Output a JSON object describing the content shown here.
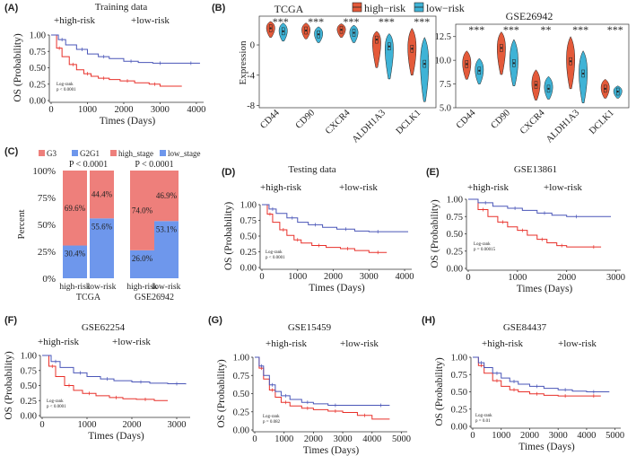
{
  "colors": {
    "high": "#e8302a",
    "low": "#4a56b8",
    "g3": "#ee7f7b",
    "g2g1": "#6e97ec",
    "violin_high": "#e45a3a",
    "violin_low": "#3fb3d6"
  },
  "panels": {
    "A": {
      "label": "(A)",
      "title": "Training data",
      "legend_high": "high-risk",
      "legend_low": "low-risk",
      "logrank": "Log-rank",
      "pvalue": "p < 0.0001"
    },
    "B": {
      "label": "(B)",
      "legend_high": "high−risk",
      "legend_low": "low−risk",
      "ylabel": "Expression",
      "left_title": "TCGA",
      "right_title": "GSE26942"
    },
    "C": {
      "label": "(C)",
      "legend": [
        "G3",
        "G2G1",
        "high_stage",
        "low_stage"
      ],
      "ylabel": "Percent"
    },
    "D": {
      "label": "(D)",
      "title": "Testing data",
      "legend_high": "high-risk",
      "legend_low": "low-risk",
      "logrank": "Log-rank",
      "pvalue": "p < 0.0001"
    },
    "E": {
      "label": "(E)",
      "title": "GSE13861",
      "legend_high": "high-risk",
      "legend_low": "low-risk",
      "logrank": "Log-rank",
      "pvalue": "p = 0.00015"
    },
    "F": {
      "label": "(F)",
      "title": "GSE62254",
      "legend_high": "high-risk",
      "legend_low": "low-risk",
      "logrank": "Log-rank",
      "pvalue": "p < 0.0001"
    },
    "G": {
      "label": "(G)",
      "title": "GSE15459",
      "legend_high": "high-risk",
      "legend_low": "low-risk",
      "logrank": "Log-rank",
      "pvalue": "p = 0.082"
    },
    "H": {
      "label": "(H)",
      "title": "GSE84437",
      "legend_high": "high-risk",
      "legend_low": "low-risk",
      "logrank": "Log-rank",
      "pvalue": "p = 0.01"
    }
  },
  "chart_data": [
    {
      "panel": "A",
      "type": "line",
      "subtype": "kaplan-meier",
      "title": "Training data",
      "xlabel": "Times (Days)",
      "ylabel": "OS (Probability)",
      "xlim": [
        0,
        4200
      ],
      "ylim": [
        0,
        1
      ],
      "xticks": [
        0,
        1000,
        2000,
        3000,
        4000
      ],
      "yticks": [
        0,
        0.25,
        0.5,
        0.75,
        1.0
      ],
      "ytick_labels": [
        "0.00",
        "0.25",
        "0.50",
        "0.75",
        "1.00"
      ],
      "annotation": "Log-rank\np < 0.0001",
      "series": [
        {
          "name": "high-risk",
          "x": [
            0,
            150,
            300,
            500,
            700,
            900,
            1100,
            1300,
            1600,
            1900,
            2300,
            2700,
            3000,
            3600
          ],
          "y": [
            1.0,
            0.8,
            0.67,
            0.55,
            0.47,
            0.41,
            0.37,
            0.34,
            0.32,
            0.3,
            0.27,
            0.25,
            0.22,
            0.22
          ]
        },
        {
          "name": "low-risk",
          "x": [
            0,
            200,
            400,
            700,
            1000,
            1300,
            1600,
            2000,
            2400,
            2800,
            3200,
            3600,
            4100
          ],
          "y": [
            1.0,
            0.93,
            0.85,
            0.78,
            0.71,
            0.67,
            0.64,
            0.6,
            0.58,
            0.57,
            0.57,
            0.57,
            0.57
          ]
        }
      ]
    },
    {
      "panel": "B-left",
      "type": "violin",
      "title": "TCGA",
      "ylabel": "Expression",
      "ylim": [
        -8.3,
        3.8
      ],
      "yticks": [
        -8,
        -4,
        0
      ],
      "ytick_labels": [
        "-8",
        "-4",
        "0"
      ],
      "categories": [
        "CD44",
        "CD90",
        "CXCR4",
        "ALDH1A3",
        "DCLK1"
      ],
      "significance": [
        "***",
        "***",
        "***",
        "***",
        "***"
      ],
      "series": [
        {
          "name": "high−risk",
          "median": [
            2.2,
            1.9,
            2.0,
            0.7,
            -0.5
          ],
          "min": [
            1.0,
            0.8,
            1.0,
            -3.0,
            -4.0
          ],
          "max": [
            3.1,
            2.9,
            2.8,
            1.8,
            2.2
          ]
        },
        {
          "name": "low−risk",
          "median": [
            1.8,
            1.4,
            1.6,
            -0.2,
            -2.5
          ],
          "min": [
            0.5,
            0.3,
            0.3,
            -4.5,
            -7.5
          ],
          "max": [
            2.9,
            2.4,
            2.6,
            1.5,
            1.0
          ]
        }
      ]
    },
    {
      "panel": "B-right",
      "type": "violin",
      "title": "GSE26942",
      "ylim": [
        5.0,
        13.8
      ],
      "yticks": [
        5.0,
        7.5,
        10.0,
        12.5
      ],
      "ytick_labels": [
        "5.0",
        "7.5",
        "10.0",
        "12.5"
      ],
      "categories": [
        "CD44",
        "CD90",
        "CXCR4",
        "ALDH1A3",
        "DCLK1"
      ],
      "significance": [
        "***",
        "***",
        "**",
        "***",
        "***"
      ],
      "series": [
        {
          "name": "high−risk",
          "median": [
            9.6,
            11.3,
            7.4,
            9.9,
            7.0
          ],
          "min": [
            8.0,
            8.5,
            5.8,
            7.0,
            6.0
          ],
          "max": [
            11.0,
            13.0,
            9.0,
            12.5,
            8.0
          ]
        },
        {
          "name": "low−risk",
          "median": [
            8.9,
            9.7,
            7.0,
            8.6,
            6.7
          ],
          "min": [
            7.5,
            7.3,
            5.9,
            5.5,
            6.0
          ],
          "max": [
            10.2,
            12.2,
            8.3,
            11.0,
            7.3
          ]
        }
      ]
    },
    {
      "panel": "C",
      "type": "bar",
      "subtype": "stacked-percent",
      "ylabel": "Percent",
      "yticks": [
        0,
        25,
        50,
        75,
        100
      ],
      "ytick_labels": [
        "0%",
        "25%",
        "50%",
        "75%",
        "100%"
      ],
      "groups": [
        {
          "name": "TCGA",
          "pvalue": "P < 0.0001",
          "categories": [
            "high-risk",
            "low-risk"
          ],
          "G3": [
            69.6,
            44.4
          ],
          "G2G1": [
            30.4,
            55.6
          ],
          "labels_top": [
            "69.6%",
            "44.4%"
          ],
          "labels_bottom": [
            "30.4%",
            "55.6%"
          ]
        },
        {
          "name": "GSE26942",
          "pvalue": "P < 0.0001",
          "categories": [
            "high-risk",
            "low-risk"
          ],
          "high_stage": [
            74.0,
            46.9
          ],
          "low_stage": [
            26.0,
            53.1
          ],
          "labels_top": [
            "74.0%",
            "46.9%"
          ],
          "labels_bottom": [
            "26.0%",
            "53.1%"
          ]
        }
      ]
    },
    {
      "panel": "D",
      "type": "line",
      "subtype": "kaplan-meier",
      "title": "Testing data",
      "xlabel": "Times (Days)",
      "ylabel": "OS (Probability)",
      "xlim": [
        0,
        4200
      ],
      "ylim": [
        0,
        1
      ],
      "xticks": [
        0,
        1000,
        2000,
        3000,
        4000
      ],
      "yticks": [
        0,
        0.25,
        0.5,
        0.75,
        1.0
      ],
      "ytick_labels": [
        "0.00",
        "0.25",
        "0.50",
        "0.75",
        "1.00"
      ],
      "annotation": "Log-rank\np < 0.0001",
      "series": [
        {
          "name": "high-risk",
          "x": [
            0,
            150,
            300,
            500,
            700,
            900,
            1100,
            1400,
            1800,
            2200,
            2600,
            3000,
            3500
          ],
          "y": [
            1.0,
            0.85,
            0.72,
            0.6,
            0.51,
            0.44,
            0.39,
            0.35,
            0.32,
            0.3,
            0.27,
            0.24,
            0.24
          ]
        },
        {
          "name": "low-risk",
          "x": [
            0,
            200,
            400,
            700,
            1000,
            1300,
            1700,
            2100,
            2600,
            3000,
            3500,
            4100
          ],
          "y": [
            1.0,
            0.93,
            0.86,
            0.79,
            0.72,
            0.68,
            0.64,
            0.61,
            0.58,
            0.57,
            0.57,
            0.57
          ]
        }
      ]
    },
    {
      "panel": "E",
      "type": "line",
      "subtype": "kaplan-meier",
      "title": "GSE13861",
      "xlabel": "Times (Days)",
      "ylabel": "OS (Probability)",
      "xlim": [
        0,
        3100
      ],
      "ylim": [
        0,
        1
      ],
      "xticks": [
        0,
        1000,
        2000,
        3000
      ],
      "yticks": [
        0,
        0.25,
        0.5,
        0.75,
        1.0
      ],
      "ytick_labels": [
        "0.00",
        "0.25",
        "0.50",
        "0.75",
        "1.00"
      ],
      "annotation": "Log-rank\np = 0.00015",
      "series": [
        {
          "name": "high-risk",
          "x": [
            0,
            200,
            400,
            600,
            800,
            1000,
            1200,
            1400,
            1600,
            1800,
            2000,
            2400,
            2700
          ],
          "y": [
            1.0,
            0.85,
            0.75,
            0.67,
            0.6,
            0.55,
            0.48,
            0.42,
            0.37,
            0.33,
            0.31,
            0.31,
            0.31
          ]
        },
        {
          "name": "low-risk",
          "x": [
            0,
            200,
            500,
            800,
            1100,
            1400,
            1700,
            2000,
            2400,
            2900
          ],
          "y": [
            1.0,
            0.95,
            0.9,
            0.87,
            0.84,
            0.8,
            0.77,
            0.75,
            0.75,
            0.75
          ]
        }
      ]
    },
    {
      "panel": "F",
      "type": "line",
      "subtype": "kaplan-meier",
      "title": "GSE62254",
      "xlabel": "Times (Days)",
      "ylabel": "OS (Probability)",
      "xlim": [
        0,
        3300
      ],
      "ylim": [
        0,
        1
      ],
      "xticks": [
        0,
        1000,
        2000,
        3000
      ],
      "yticks": [
        0,
        0.25,
        0.5,
        0.75,
        1.0
      ],
      "ytick_labels": [
        "0.00",
        "0.25",
        "0.50",
        "0.75",
        "1.00"
      ],
      "annotation": "Log-rank\np < 0.0001",
      "series": [
        {
          "name": "high-risk",
          "x": [
            0,
            150,
            300,
            500,
            700,
            900,
            1200,
            1500,
            1800,
            2100,
            2500,
            2800
          ],
          "y": [
            1.0,
            0.82,
            0.65,
            0.5,
            0.42,
            0.37,
            0.33,
            0.3,
            0.28,
            0.27,
            0.25,
            0.25
          ]
        },
        {
          "name": "low-risk",
          "x": [
            0,
            200,
            400,
            700,
            1000,
            1300,
            1600,
            2000,
            2400,
            2800,
            3200
          ],
          "y": [
            1.0,
            0.9,
            0.8,
            0.71,
            0.65,
            0.61,
            0.58,
            0.56,
            0.54,
            0.53,
            0.52
          ]
        }
      ]
    },
    {
      "panel": "G",
      "type": "line",
      "subtype": "kaplan-meier",
      "title": "GSE15459",
      "xlabel": "Times (Days)",
      "ylabel": "OS (Probability)",
      "xlim": [
        0,
        5200
      ],
      "ylim": [
        0,
        1
      ],
      "xticks": [
        0,
        1000,
        2000,
        3000,
        4000,
        5000
      ],
      "yticks": [
        0,
        0.25,
        0.5,
        0.75,
        1.0
      ],
      "ytick_labels": [
        "0.00",
        "0.25",
        "0.50",
        "0.75",
        "1.00"
      ],
      "annotation": "Log-rank\np = 0.082",
      "series": [
        {
          "name": "high-risk",
          "x": [
            0,
            150,
            300,
            500,
            700,
            900,
            1200,
            1600,
            2000,
            2500,
            3000,
            3500,
            4000,
            4600
          ],
          "y": [
            1.0,
            0.85,
            0.7,
            0.55,
            0.45,
            0.38,
            0.33,
            0.3,
            0.28,
            0.26,
            0.24,
            0.2,
            0.15,
            0.15
          ]
        },
        {
          "name": "low-risk",
          "x": [
            0,
            150,
            300,
            500,
            700,
            900,
            1200,
            1600,
            2000,
            2500,
            3000,
            4000,
            4600
          ],
          "y": [
            1.0,
            0.88,
            0.75,
            0.62,
            0.53,
            0.47,
            0.42,
            0.38,
            0.36,
            0.34,
            0.34,
            0.34,
            0.34
          ]
        }
      ]
    },
    {
      "panel": "H",
      "type": "line",
      "subtype": "kaplan-meier",
      "title": "GSE84437",
      "xlabel": "Times (Days)",
      "ylabel": "OS (Probability)",
      "xlim": [
        0,
        5200
      ],
      "ylim": [
        0,
        1
      ],
      "xticks": [
        0,
        1000,
        2000,
        3000,
        4000,
        5000
      ],
      "yticks": [
        0,
        0.25,
        0.5,
        0.75,
        1.0
      ],
      "ytick_labels": [
        "0.00",
        "0.25",
        "0.50",
        "0.75",
        "1.00"
      ],
      "annotation": "Log-rank\np = 0.01",
      "series": [
        {
          "name": "high-risk",
          "x": [
            0,
            200,
            400,
            700,
            1000,
            1300,
            1600,
            2000,
            2500,
            3000,
            3500,
            4000,
            4500
          ],
          "y": [
            1.0,
            0.88,
            0.77,
            0.66,
            0.58,
            0.53,
            0.5,
            0.47,
            0.45,
            0.44,
            0.44,
            0.44,
            0.44
          ]
        },
        {
          "name": "low-risk",
          "x": [
            0,
            200,
            400,
            700,
            1000,
            1300,
            1600,
            2000,
            2500,
            3000,
            3500,
            4000,
            4500,
            4800
          ],
          "y": [
            1.0,
            0.92,
            0.85,
            0.77,
            0.7,
            0.65,
            0.61,
            0.58,
            0.55,
            0.53,
            0.51,
            0.5,
            0.5,
            0.5
          ]
        }
      ]
    }
  ]
}
